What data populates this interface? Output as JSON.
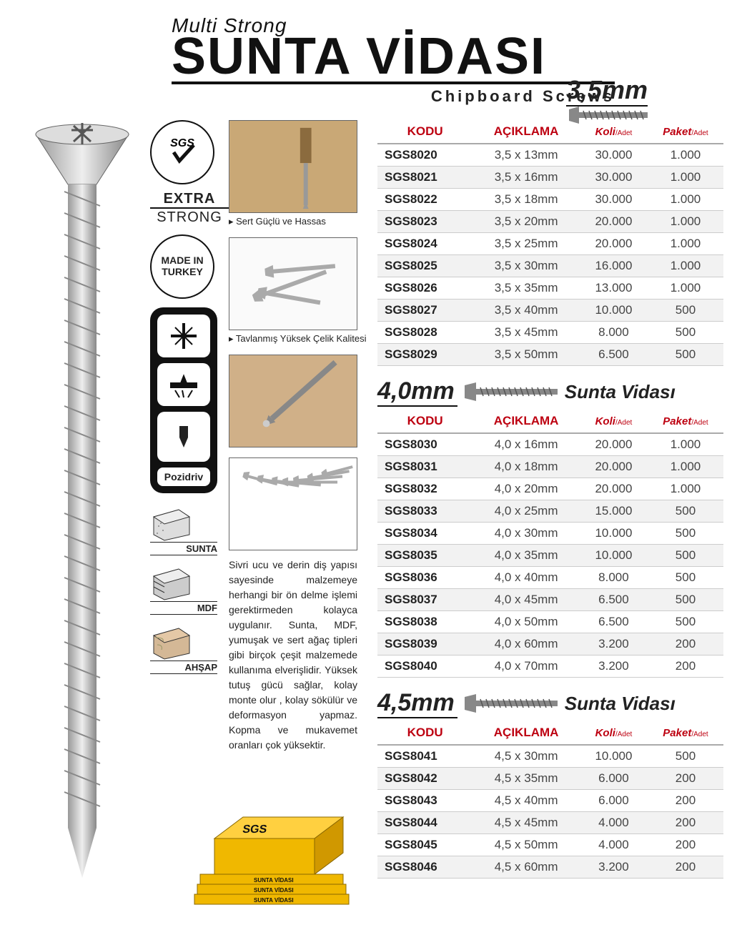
{
  "header": {
    "subtitle": "Multi Strong",
    "title": "SUNTA VİDASI",
    "subtitle2": "Chipboard Screws",
    "top_size": "3,5mm"
  },
  "badges": {
    "sgs": "SGS",
    "extra": "EXTRA",
    "strong": "STRONG",
    "made_in": "MADE IN",
    "made_country": "TURKEY",
    "pozidriv": "Pozidriv"
  },
  "materials": [
    {
      "label": "SUNTA"
    },
    {
      "label": "MDF"
    },
    {
      "label": "AHŞAP"
    }
  ],
  "photos": {
    "cap1": "▸ Sert Güçlü ve Hassas",
    "cap2": "▸ Tavlanmış Yüksek Çelik Kalitesi"
  },
  "description": "Sivri ucu ve derin diş yapısı sayesinde malzemeye herhangi bir ön delme işlemi gerektirmeden kolayca uygulanır. Sunta, MDF, yumuşak ve sert ağaç tipleri gibi birçok çeşit malzemede kullanıma elverişlidir. Yüksek tutuş gücü sağlar, kolay monte olur , kolay sökülür ve deformasyon yapmaz. Kopma ve mukavemet oranları çok yüksektir.",
  "box": {
    "brand": "SGS",
    "product": "SUNTA VİDASI"
  },
  "table_headers": {
    "kodu": "KODU",
    "aciklama": "AÇIKLAMA",
    "koli1": "Koli",
    "koli2": "/Adet",
    "paket1": "Paket",
    "paket2": "/Adet"
  },
  "sections": [
    {
      "size": "",
      "title": "",
      "rows": [
        {
          "code": "SGS8020",
          "desc": "3,5 x 13mm",
          "koli": "30.000",
          "paket": "1.000"
        },
        {
          "code": "SGS8021",
          "desc": "3,5 x 16mm",
          "koli": "30.000",
          "paket": "1.000"
        },
        {
          "code": "SGS8022",
          "desc": "3,5 x 18mm",
          "koli": "30.000",
          "paket": "1.000"
        },
        {
          "code": "SGS8023",
          "desc": "3,5 x 20mm",
          "koli": "20.000",
          "paket": "1.000"
        },
        {
          "code": "SGS8024",
          "desc": "3,5 x 25mm",
          "koli": "20.000",
          "paket": "1.000"
        },
        {
          "code": "SGS8025",
          "desc": "3,5 x 30mm",
          "koli": "16.000",
          "paket": "1.000"
        },
        {
          "code": "SGS8026",
          "desc": "3,5 x 35mm",
          "koli": "13.000",
          "paket": "1.000"
        },
        {
          "code": "SGS8027",
          "desc": "3,5 x 40mm",
          "koli": "10.000",
          "paket": "500"
        },
        {
          "code": "SGS8028",
          "desc": "3,5 x 45mm",
          "koli": "8.000",
          "paket": "500"
        },
        {
          "code": "SGS8029",
          "desc": "3,5 x 50mm",
          "koli": "6.500",
          "paket": "500"
        }
      ]
    },
    {
      "size": "4,0mm",
      "title": "Sunta Vidası",
      "rows": [
        {
          "code": "SGS8030",
          "desc": "4,0 x 16mm",
          "koli": "20.000",
          "paket": "1.000"
        },
        {
          "code": "SGS8031",
          "desc": "4,0 x 18mm",
          "koli": "20.000",
          "paket": "1.000"
        },
        {
          "code": "SGS8032",
          "desc": "4,0 x 20mm",
          "koli": "20.000",
          "paket": "1.000"
        },
        {
          "code": "SGS8033",
          "desc": "4,0 x 25mm",
          "koli": "15.000",
          "paket": "500"
        },
        {
          "code": "SGS8034",
          "desc": "4,0 x 30mm",
          "koli": "10.000",
          "paket": "500"
        },
        {
          "code": "SGS8035",
          "desc": "4,0 x 35mm",
          "koli": "10.000",
          "paket": "500"
        },
        {
          "code": "SGS8036",
          "desc": "4,0 x 40mm",
          "koli": "8.000",
          "paket": "500"
        },
        {
          "code": "SGS8037",
          "desc": "4,0 x 45mm",
          "koli": "6.500",
          "paket": "500"
        },
        {
          "code": "SGS8038",
          "desc": "4,0 x 50mm",
          "koli": "6.500",
          "paket": "500"
        },
        {
          "code": "SGS8039",
          "desc": "4,0 x 60mm",
          "koli": "3.200",
          "paket": "200"
        },
        {
          "code": "SGS8040",
          "desc": "4,0 x 70mm",
          "koli": "3.200",
          "paket": "200"
        }
      ]
    },
    {
      "size": "4,5mm",
      "title": "Sunta Vidası",
      "rows": [
        {
          "code": "SGS8041",
          "desc": "4,5 x 30mm",
          "koli": "10.000",
          "paket": "500"
        },
        {
          "code": "SGS8042",
          "desc": "4,5 x 35mm",
          "koli": "6.000",
          "paket": "200"
        },
        {
          "code": "SGS8043",
          "desc": "4,5 x 40mm",
          "koli": "6.000",
          "paket": "200"
        },
        {
          "code": "SGS8044",
          "desc": "4,5 x 45mm",
          "koli": "4.000",
          "paket": "200"
        },
        {
          "code": "SGS8045",
          "desc": "4,5 x 50mm",
          "koli": "4.000",
          "paket": "200"
        },
        {
          "code": "SGS8046",
          "desc": "4,5 x 60mm",
          "koli": "3.200",
          "paket": "200"
        }
      ]
    }
  ],
  "colors": {
    "red": "#bd0010",
    "accent": "#f0b800"
  }
}
